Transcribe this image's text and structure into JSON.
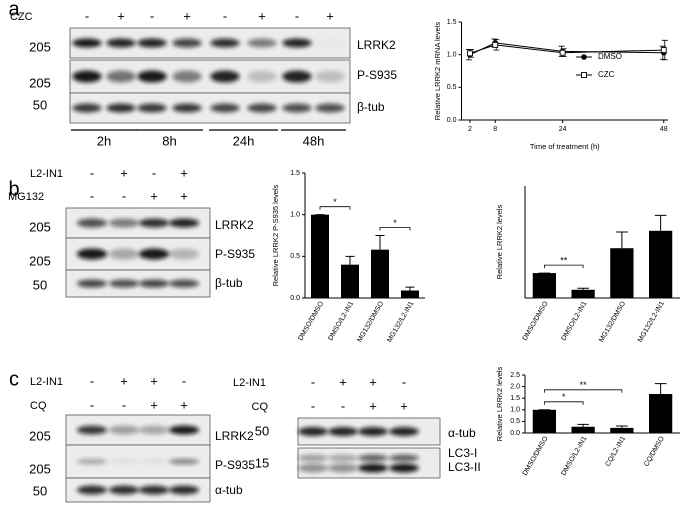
{
  "blots": [
    {
      "panel_label": "a",
      "treatments": [
        {
          "name": "CZC",
          "marks": [
            "-",
            "+",
            "-",
            "+",
            "-",
            "+",
            "-",
            "+"
          ]
        }
      ],
      "molecular_weights": [
        "205",
        "205",
        "50"
      ],
      "bands": [
        "LRRK2",
        "P-S935",
        "β-tub"
      ],
      "times": [
        "2h",
        "8h",
        "24h",
        "48h"
      ]
    },
    {
      "panel_label": "b",
      "treatments": [
        {
          "name": "L2-IN1",
          "marks": [
            "-",
            "+",
            "-",
            "+"
          ]
        },
        {
          "name": "MG132",
          "marks": [
            "-",
            "-",
            "+",
            "+"
          ]
        }
      ],
      "molecular_weights": [
        "205",
        "205",
        "50"
      ],
      "bands": [
        "LRRK2",
        "P-S935",
        "β-tub"
      ]
    },
    {
      "panel_label": "c",
      "treatments": [
        {
          "name": "L2-IN1",
          "marks": [
            "-",
            "+",
            "+",
            "-"
          ]
        },
        {
          "name": "CQ",
          "marks": [
            "-",
            "-",
            "+",
            "+"
          ]
        }
      ],
      "molecular_weights": [
        "205",
        "205",
        "50"
      ],
      "bands": [
        "LRRK2",
        "P-S935",
        "α-tub"
      ]
    },
    {
      "treatments": [
        {
          "name": "L2-IN1",
          "marks": [
            "-",
            "+",
            "+",
            "-"
          ]
        },
        {
          "name": "CQ",
          "marks": [
            "-",
            "-",
            "+",
            "+"
          ]
        }
      ],
      "molecular_weights": [
        "50",
        "15"
      ],
      "bands": [
        "α-tub",
        "LC3-I",
        "LC3-II"
      ]
    }
  ],
  "chart_data": [
    {
      "type": "line",
      "y_label": "Relative LRRK2 mRNA levels",
      "x_label": "Time of treatment (h)",
      "x": [
        2,
        8,
        24,
        48
      ],
      "xlim": [
        0,
        49
      ],
      "xticks": [
        2,
        8,
        24,
        48
      ],
      "ylim": [
        0,
        1.5
      ],
      "yticks": [
        {
          "value": 0,
          "label": "0.0"
        },
        {
          "value": 0.5,
          "label": "0.5"
        },
        {
          "value": 1,
          "label": "1.0"
        },
        {
          "value": 1.5,
          "label": "1.5"
        }
      ],
      "series": [
        {
          "name": "DMSO",
          "color": "#000000",
          "marker": "circle-filled",
          "values": [
            1.0,
            1.18,
            1.05,
            1.03
          ],
          "errors": [
            0.08,
            0.06,
            0.08,
            0.1
          ]
        },
        {
          "name": "CZC",
          "color": "#000000",
          "marker": "square-open",
          "values": [
            1.02,
            1.15,
            1.03,
            1.07
          ],
          "errors": [
            0.06,
            0.08,
            0.06,
            0.15
          ]
        }
      ]
    },
    {
      "type": "bar",
      "y_label": "Relative LRRK2 P-S935 levels",
      "color": "#000000",
      "categories": [
        "DMSO/DMSO",
        "DMSO/L2-IN1",
        "MG132/DMSO",
        "MG132/L2-IN1"
      ],
      "values": [
        1.0,
        0.4,
        0.58,
        0.09
      ],
      "errors": [
        0,
        0.1,
        0.17,
        0.04
      ],
      "ylim": [
        0,
        1.5
      ],
      "yticks": [
        {
          "value": 0,
          "label": "0.0"
        },
        {
          "value": 0.5,
          "label": "0.5"
        },
        {
          "value": 1,
          "label": "1.0"
        },
        {
          "value": 1.5,
          "label": "1.5"
        }
      ],
      "annotations": [
        {
          "text": "*",
          "between": [
            0,
            1
          ]
        },
        {
          "text": "*",
          "between": [
            2,
            3
          ]
        }
      ]
    },
    {
      "type": "bar",
      "y_label": "Relative LRRK2 levels",
      "color": "#000000",
      "categories": [
        "DMSO/DMSO",
        "DMSO/L2-IN1",
        "MG132/DMSO",
        "MG132/L2-IN1"
      ],
      "values": [
        1.0,
        0.33,
        2.0,
        2.7
      ],
      "errors": [
        0,
        0.06,
        0.65,
        0.62
      ],
      "ylim": [
        0,
        4.5
      ],
      "annotations": [
        {
          "text": "**",
          "between": [
            0,
            1
          ]
        }
      ]
    },
    {
      "type": "bar",
      "y_label": "Relative LRRK2 levels",
      "color": "#000000",
      "categories": [
        "DMSO/DMSO",
        "DMSO/L2-IN1",
        "CQ/L2-IN1",
        "CQ/DMSO"
      ],
      "values": [
        1.0,
        0.27,
        0.22,
        1.68
      ],
      "errors": [
        0,
        0.1,
        0.08,
        0.45
      ],
      "ylim": [
        0,
        2.5
      ],
      "yticks": [
        {
          "value": 0,
          "label": "0.0"
        },
        {
          "value": 0.5,
          "label": "0.5"
        },
        {
          "value": 1,
          "label": "1.0"
        },
        {
          "value": 1.5,
          "label": "1.5"
        },
        {
          "value": 2,
          "label": "2.0"
        },
        {
          "value": 2.5,
          "label": "2.5"
        }
      ],
      "annotations": [
        {
          "text": "*",
          "between": [
            0,
            1
          ]
        },
        {
          "text": "**",
          "between": [
            0,
            2
          ]
        }
      ]
    }
  ]
}
